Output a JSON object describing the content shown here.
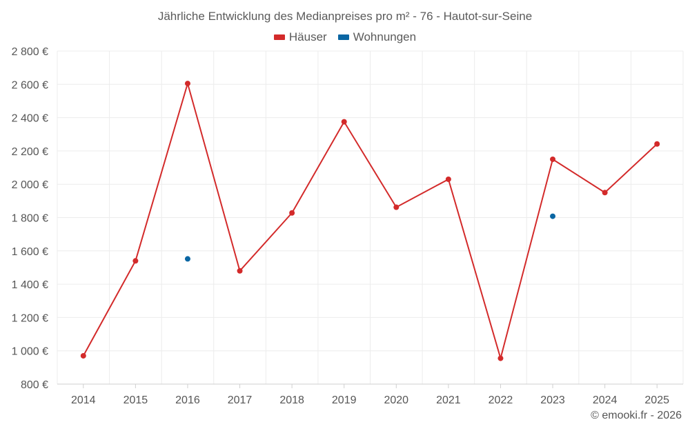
{
  "chart_data": {
    "type": "line",
    "title": "Jährliche Entwicklung des Medianpreises pro m² - 76 - Hautot-sur-Seine",
    "xlabel": "",
    "ylabel": "",
    "categories": [
      "2014",
      "2015",
      "2016",
      "2017",
      "2018",
      "2019",
      "2020",
      "2021",
      "2022",
      "2023",
      "2024",
      "2025"
    ],
    "y_ticks": [
      800,
      1000,
      1200,
      1400,
      1600,
      1800,
      2000,
      2200,
      2400,
      2600,
      2800
    ],
    "y_tick_labels": [
      "800 €",
      "1 000 €",
      "1 200 €",
      "1 400 €",
      "1 600 €",
      "1 800 €",
      "2 000 €",
      "2 200 €",
      "2 400 €",
      "2 600 €",
      "2 800 €"
    ],
    "ylim": [
      800,
      2800
    ],
    "grid": true,
    "legend_position": "top-center",
    "series": [
      {
        "name": "Häuser",
        "color": "#d32a2a",
        "values": [
          970,
          1540,
          2605,
          1480,
          1828,
          2375,
          1862,
          2030,
          955,
          2150,
          1950,
          2242
        ]
      },
      {
        "name": "Wohnungen",
        "color": "#0a66a3",
        "values": [
          null,
          null,
          1552,
          null,
          null,
          null,
          null,
          null,
          null,
          1808,
          null,
          null
        ]
      }
    ],
    "credit": "© emooki.fr - 2026"
  }
}
